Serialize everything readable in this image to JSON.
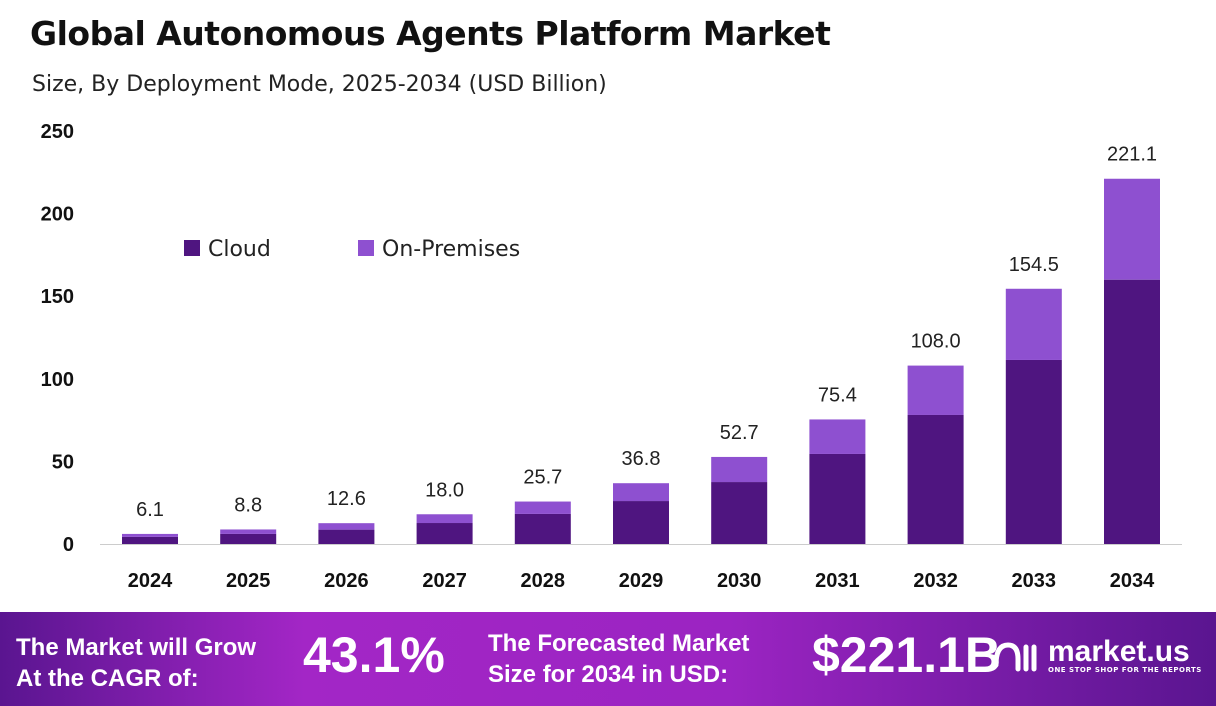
{
  "header": {
    "title": "Global Autonomous Agents Platform Market",
    "subtitle": "Size, By Deployment Mode, 2025-2034 (USD Billion)"
  },
  "chart_data": {
    "type": "bar",
    "stacked": true,
    "categories": [
      "2024",
      "2025",
      "2026",
      "2027",
      "2028",
      "2029",
      "2030",
      "2031",
      "2032",
      "2033",
      "2034"
    ],
    "totals": [
      6.1,
      8.8,
      12.6,
      18.0,
      25.7,
      36.8,
      52.7,
      75.4,
      108.0,
      154.5,
      221.1
    ],
    "total_labels": [
      "6.1",
      "8.8",
      "12.6",
      "18.0",
      "25.7",
      "36.8",
      "52.7",
      "75.4",
      "108.0",
      "154.5",
      "221.1"
    ],
    "series": [
      {
        "name": "Cloud",
        "color": "#4f1580",
        "values": [
          4.3,
          6.1,
          8.7,
          12.7,
          18.2,
          26.0,
          37.5,
          54.5,
          78.1,
          111.4,
          160.0
        ]
      },
      {
        "name": "On-Premises",
        "color": "#8e50d0",
        "values": [
          1.8,
          2.7,
          3.9,
          5.3,
          7.5,
          10.8,
          15.2,
          20.9,
          29.9,
          43.1,
          61.1
        ]
      }
    ],
    "yticks": [
      "0",
      "50",
      "100",
      "150",
      "200",
      "250"
    ],
    "ylim": [
      0,
      250
    ],
    "grid": false,
    "legend": "top-left"
  },
  "footer": {
    "cagr_label": [
      "The Market will Grow",
      "At the CAGR of:"
    ],
    "cagr_value": "43.1%",
    "forecast_label": [
      "The Forecasted Market",
      "Size for 2034 in USD:"
    ],
    "forecast_value": "$221.1B",
    "logo_text": "market.us",
    "logo_tagline": "ONE STOP SHOP FOR THE REPORTS"
  }
}
